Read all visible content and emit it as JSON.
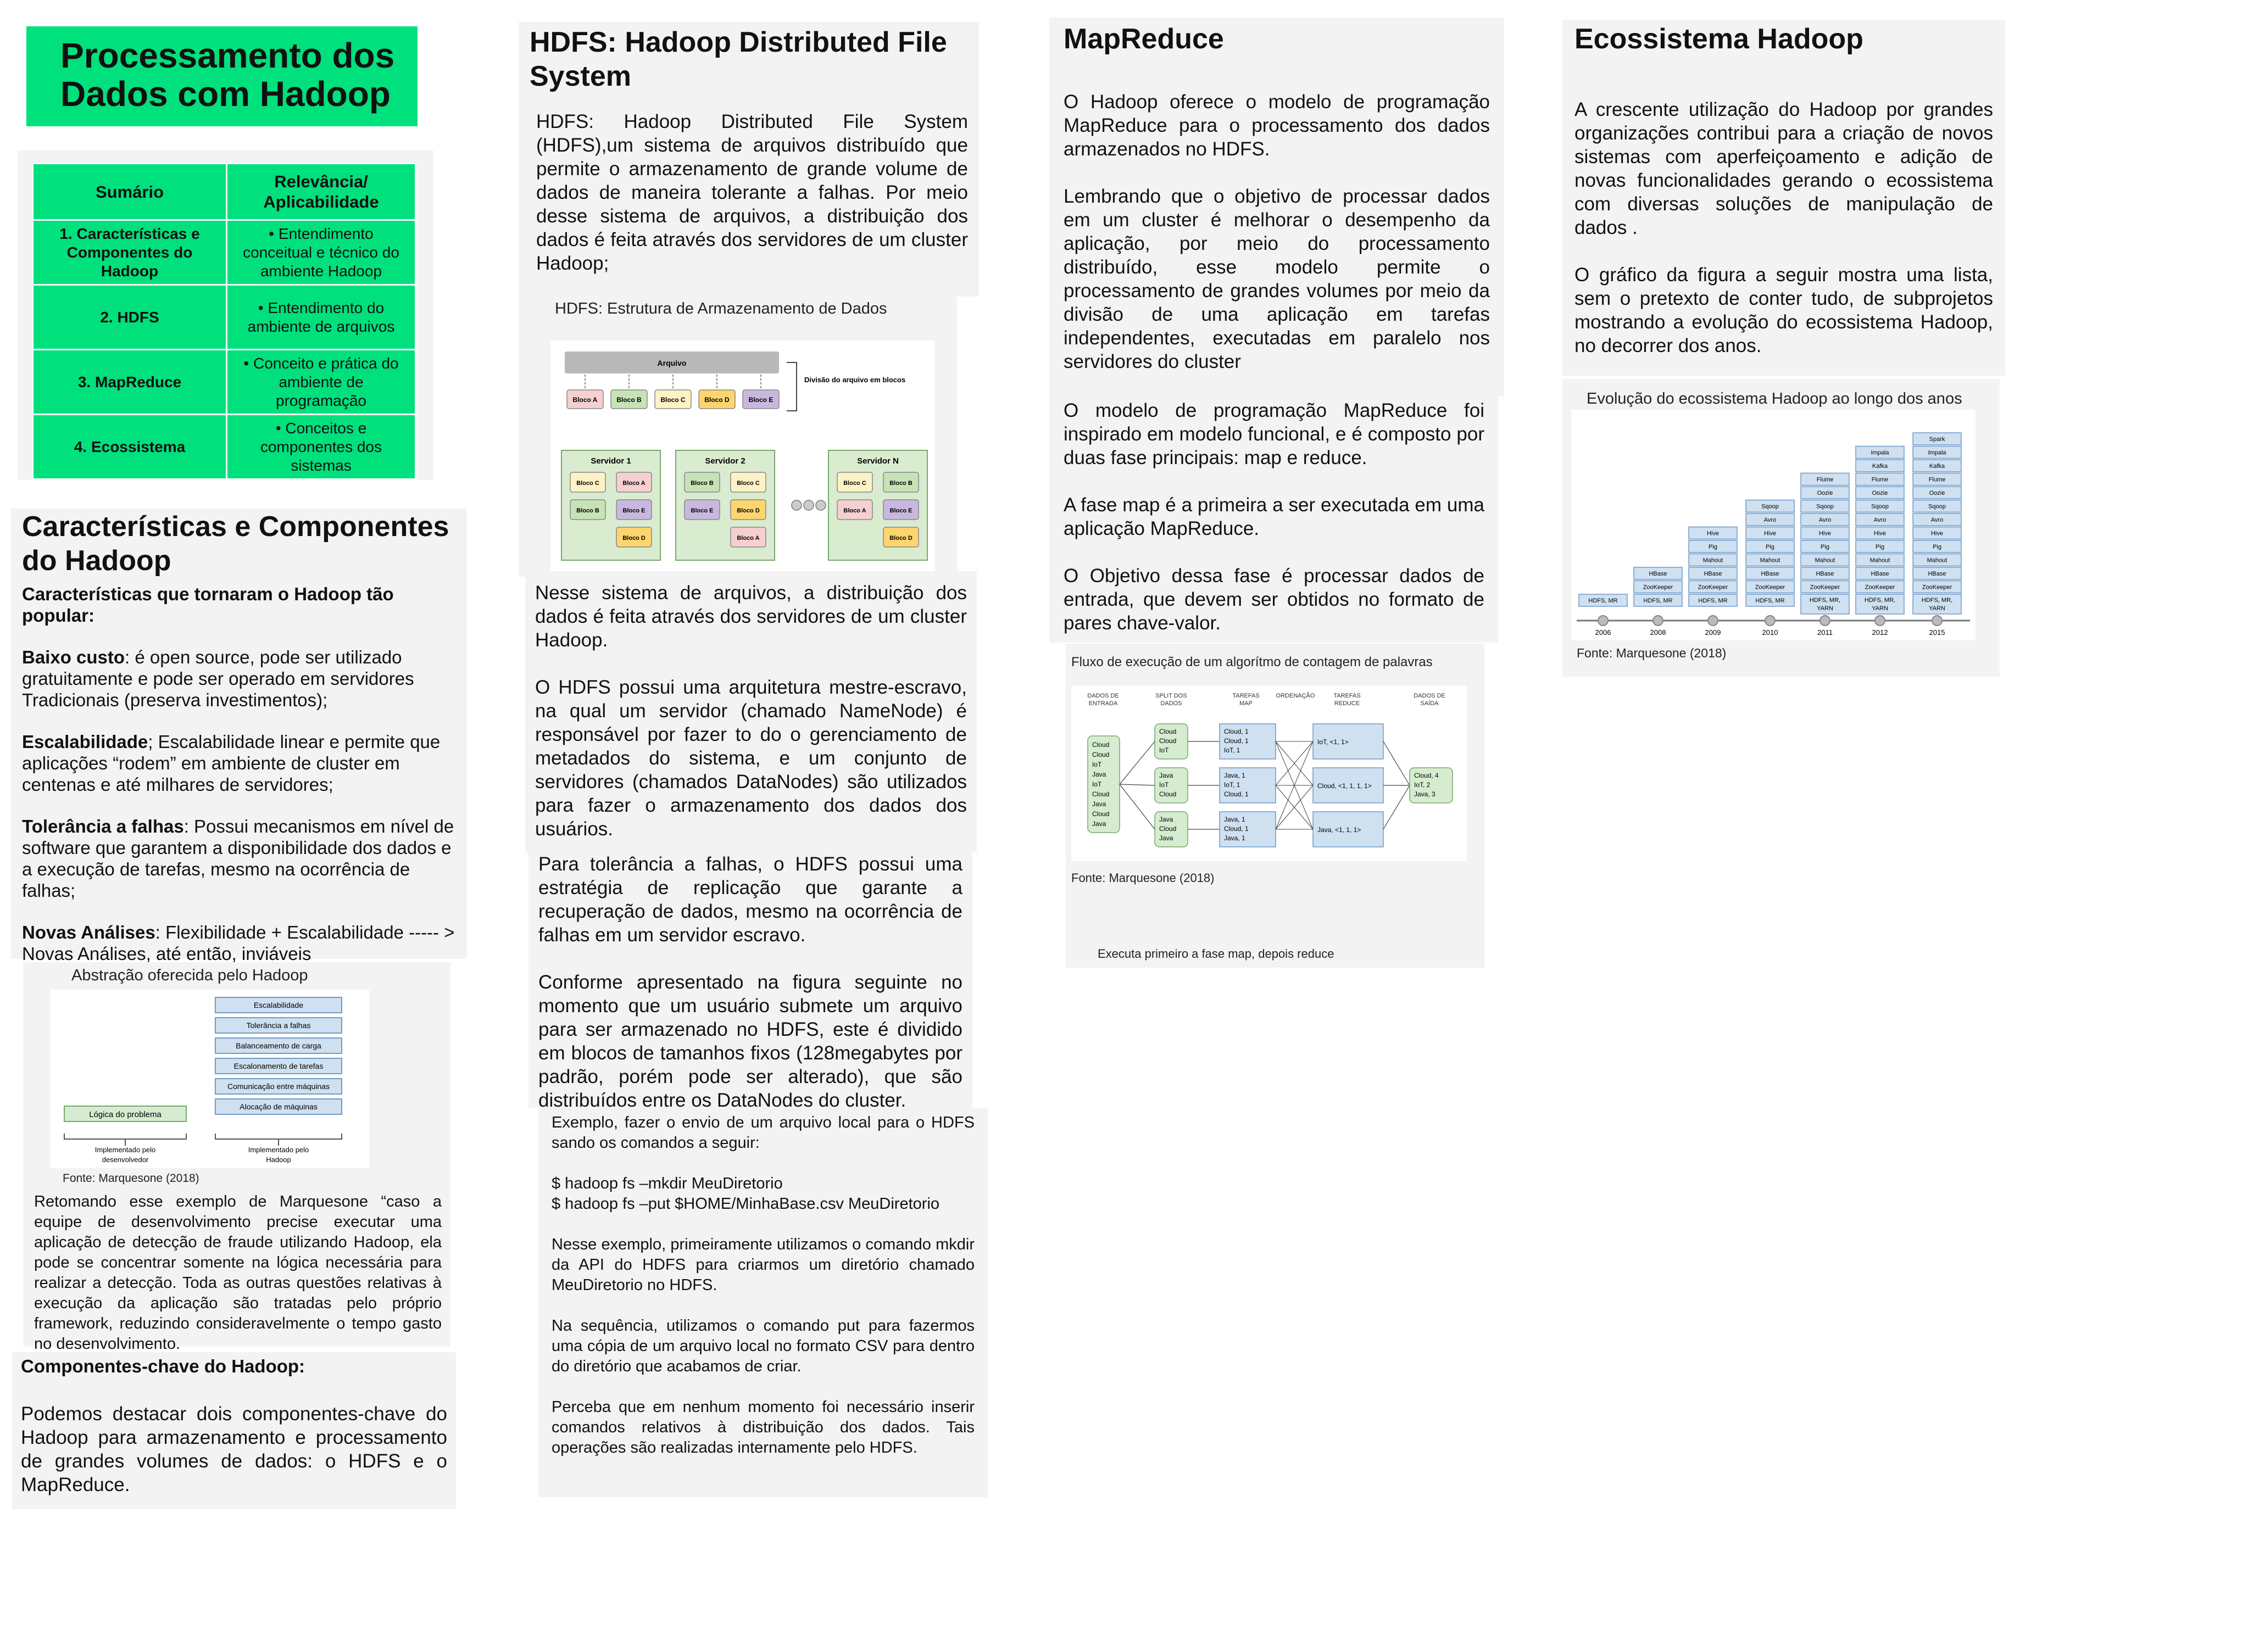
{
  "title": {
    "line1": "Processamento dos",
    "line2": "Dados com Hadoop"
  },
  "summary": {
    "headers": [
      "Sumário",
      "Relevância/ Aplicabilidade"
    ],
    "rows": [
      {
        "topic": "1. Características e Componentes do Hadoop",
        "relevance": "Entendimento conceitual e técnico do ambiente Hadoop"
      },
      {
        "topic": "2. HDFS",
        "relevance": "Entendimento do ambiente de arquivos"
      },
      {
        "topic": "3. MapReduce",
        "relevance": "Conceito e prática do ambiente de programação"
      },
      {
        "topic": "4. Ecossistema",
        "relevance": "Conceitos e componentes dos sistemas"
      }
    ]
  },
  "caracteristicas": {
    "heading_line1": "Características e Componentes",
    "heading_line2": "do Hadoop",
    "intro": "Características que tornaram o Hadoop tão popular:",
    "items": [
      {
        "term": "Baixo custo",
        "text": ": é open source, pode ser utilizado gratuitamente e pode ser operado em servidores Tradicionais (preserva investimentos);"
      },
      {
        "term": "Escalabilidade",
        "text": "; Escalabilidade linear e permite que aplicações “rodem” em ambiente de cluster em centenas e até milhares de servidores;"
      },
      {
        "term": "Tolerância a falhas",
        "text": ": Possui mecanismos em nível de software que garantem a disponibilidade dos dados e a execução de tarefas, mesmo na ocorrência de falhas;"
      },
      {
        "term": "Novas Análises",
        "text": ": Flexibilidade  +  Escalabilidade ----- > Novas Análises, até então, inviáveis"
      }
    ]
  },
  "abstracao": {
    "caption": "Abstração oferecida pelo Hadoop",
    "left_box": "Lógica do problema",
    "left_label": [
      "Implementado pelo",
      "desenvolvedor"
    ],
    "right_boxes": [
      "Escalabilidade",
      "Tolerância a falhas",
      "Balanceamento de carga",
      "Escalonamento de tarefas",
      "Comunicação entre máquinas",
      "Alocação de máquinas"
    ],
    "right_label": [
      "Implementado pelo",
      "Hadoop"
    ],
    "source": "Fonte: Marquesone (2018)",
    "text": "Retomando esse exemplo de Marquesone “caso a equipe de desenvolvimento precise executar uma aplicação de detecção de fraude utilizando Hadoop, ela pode se concentrar somente na lógica necessária para realizar a detecção. Toda as outras questões relativas à execução da aplicação são tratadas pelo próprio framework, reduzindo consideravelmente o tempo gasto no desenvolvimento."
  },
  "componentes": {
    "heading": "Componentes-chave do Hadoop:",
    "text": "Podemos destacar dois componentes-chave do Hadoop para armazenamento e processamento de grandes volumes de dados: o HDFS e o MapReduce."
  },
  "hdfs": {
    "heading_line1": "HDFS: Hadoop Distributed File",
    "heading_line2": "System",
    "p1": "HDFS:  Hadoop Distributed File System (HDFS),um sistema de arquivos distribuído que permite o armazenamento de grande volume de dados de maneira tolerante a falhas. Por meio desse sistema de arquivos, a distribuição dos dados é feita através dos servidores de um cluster Hadoop;",
    "diagram_caption": "HDFS: Estrutura de Armazenamento de Dados",
    "diagram": {
      "file_label": "Arquivo",
      "split_label": "Divisão do arquivo em blocos",
      "blocks": [
        "Bloco A",
        "Bloco B",
        "Bloco C",
        "Bloco D",
        "Bloco E"
      ],
      "servers": [
        {
          "name": "Servidor 1",
          "blocks": [
            "Bloco C",
            "Bloco A",
            "Bloco B",
            "Bloco E",
            "Bloco D"
          ]
        },
        {
          "name": "Servidor 2",
          "blocks": [
            "Bloco B",
            "Bloco C",
            "Bloco E",
            "Bloco D",
            "Bloco A"
          ]
        },
        {
          "name": "Servidor N",
          "blocks": [
            "Bloco C",
            "Bloco B",
            "Bloco A",
            "Bloco E",
            "Bloco D"
          ]
        }
      ],
      "colors": {
        "A": "#f6cfd0",
        "B": "#c6e3b5",
        "C": "#fdf2c6",
        "D": "#fcd56e",
        "E": "#c9b8de",
        "server": "#d9ecd0",
        "file": "#b8b8b8"
      }
    },
    "p2": "Nesse sistema de arquivos, a distribuição dos dados é feita através dos servidores de um cluster Hadoop.",
    "p3": "O HDFS possui uma arquitetura mestre-escravo, na qual um servidor (chamado NameNode) é responsável por fazer to do o gerenciamento de metadados do sistema, e um conjunto de servidores (chamados DataNodes) são utilizados para fazer o armazenamento dos dados dos usuários.",
    "p4": "Para tolerância a falhas, o HDFS possui uma estratégia de replicação que garante a recuperação de dados, mesmo na ocorrência de falhas em um servidor escravo.",
    "p5": "Conforme apresentado na figura seguinte no momento que um usuário submete um arquivo para ser armazenado no HDFS, este é dividido em blocos de tamanhos fixos (128megabytes por padrão, porém pode ser alterado), que são distribuídos entre os DataNodes do cluster.",
    "example": {
      "p1": "Exemplo, fazer o envio   de um arquivo local para o HDFS sando os comandos a seguir:",
      "cmd1": "$ hadoop fs –mkdir  MeuDiretorio",
      "cmd2": "$ hadoop fs –put $HOME/MinhaBase.csv MeuDiretorio",
      "p2": "Nesse exemplo, primeiramente utilizamos o comando mkdir da API do HDFS para criarmos um diretório chamado MeuDiretorio no HDFS.",
      "p3": "Na sequência, utilizamos o comando put para fazermos uma cópia de um arquivo local no formato CSV para dentro do diretório que acabamos de criar.",
      "p4": "Perceba que em nenhum momento foi necessário inserir comandos relativos à distribuição dos dados. Tais operações são realizadas internamente pelo HDFS."
    }
  },
  "mapreduce": {
    "heading": "MapReduce",
    "p1": "O Hadoop oferece o modelo de programação MapReduce para o processamento dos dados armazenados no HDFS.",
    "p2": "Lembrando que o objetivo de processar dados em um cluster é melhorar o desempenho da aplicação, por meio do processamento distribuído, esse modelo permite o processamento de grandes volumes por meio da divisão de uma aplicação em tarefas independentes, executadas em paralelo nos servidores do cluster",
    "p3": "O modelo de programação MapReduce foi inspirado em modelo funcional, e é composto por duas fase principais: map e reduce.",
    "p4": "A fase map é a primeira a ser executada em uma aplicação MapReduce.",
    "p5": "O Objetivo dessa fase é processar dados de entrada, que devem ser obtidos no formato de pares chave-valor.",
    "flow_caption": "Fluxo de execução de  um algorítmo de contagem de palavras",
    "flow": {
      "col_headers": [
        [
          "DADOS DE",
          "ENTRADA"
        ],
        [
          "SPLIT DOS",
          "DADOS"
        ],
        [
          "TAREFAS",
          "MAP"
        ],
        [
          "ORDENAÇÃO"
        ],
        [
          "TAREFAS",
          "REDUCE"
        ],
        [
          "DADOS DE",
          "SAÍDA"
        ]
      ],
      "input": [
        "Cloud",
        "Cloud",
        "IoT",
        "Java",
        "IoT",
        "Cloud",
        "Java",
        "Cloud",
        "Java"
      ],
      "splits": [
        [
          "Cloud",
          "Cloud",
          "IoT"
        ],
        [
          "Java",
          "IoT",
          "Cloud"
        ],
        [
          "Java",
          "Cloud",
          "Java"
        ]
      ],
      "maps": [
        [
          "Cloud, 1",
          "Cloud, 1",
          "IoT, 1"
        ],
        [
          "Java, 1",
          "IoT, 1",
          "Cloud, 1"
        ],
        [
          "Java, 1",
          "Cloud, 1",
          "Java, 1"
        ]
      ],
      "reduces": [
        "IoT, <1, 1>",
        "Cloud, <1, 1, 1, 1>",
        "Java, <1, 1, 1>"
      ],
      "output": [
        "Cloud, 4",
        "IoT, 2",
        "Java, 3"
      ],
      "colors": {
        "green": "#d6ecd0",
        "blue": "#cfe0f1"
      }
    },
    "source": "Fonte: Marquesone (2018)",
    "note": "Executa primeiro a fase map, depois reduce"
  },
  "ecossistema": {
    "heading": "Ecossistema Hadoop",
    "p1": "A crescente utilização do Hadoop por grandes organizações contribui para a criação de novos sistemas com aperfeiçoamento e adição de novas funcionalidades gerando o ecossistema com diversas soluções de manipulação de dados .",
    "p2": "O gráfico da figura a seguir mostra uma lista, sem o pretexto de conter tudo, de subprojetos mostrando a evolução do ecossistema Hadoop, no decorrer dos anos.",
    "chart_caption": "Evolução do ecossistema Hadoop ao longo dos anos",
    "source": "Fonte: Marquesone (2018)",
    "timeline": [
      {
        "year": "2006",
        "items": [
          "HDFS, MR"
        ]
      },
      {
        "year": "2008",
        "items": [
          "HDFS, MR",
          "ZooKeeper",
          "HBase"
        ]
      },
      {
        "year": "2009",
        "items": [
          "HDFS, MR",
          "ZooKeeper",
          "HBase",
          "Mahout",
          "Pig",
          "Hive"
        ]
      },
      {
        "year": "2010",
        "items": [
          "HDFS, MR",
          "ZooKeeper",
          "HBase",
          "Mahout",
          "Pig",
          "Hive",
          "Avro",
          "Sqoop"
        ]
      },
      {
        "year": "2011",
        "items": [
          "HDFS, MR, YARN",
          "ZooKeeper",
          "HBase",
          "Mahout",
          "Pig",
          "Hive",
          "Avro",
          "Sqoop",
          "Oozie",
          "Flume"
        ]
      },
      {
        "year": "2012",
        "items": [
          "HDFS, MR, YARN",
          "ZooKeeper",
          "HBase",
          "Mahout",
          "Pig",
          "Hive",
          "Avro",
          "Sqoop",
          "Oozie",
          "Flume",
          "Kafka",
          "Impala"
        ]
      },
      {
        "year": "2015",
        "items": [
          "HDFS, MR, YARN",
          "ZooKeeper",
          "HBase",
          "Mahout",
          "Pig",
          "Hive",
          "Avro",
          "Sqoop",
          "Oozie",
          "Flume",
          "Kafka",
          "Impala",
          "Spark"
        ]
      }
    ],
    "colors": {
      "box": "#cfe0f1",
      "border": "#6f9bc8"
    }
  }
}
